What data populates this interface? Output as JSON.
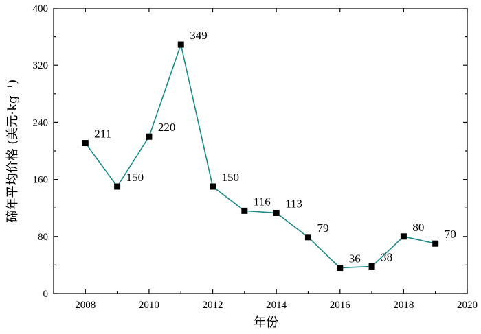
{
  "chart_data": {
    "type": "line",
    "title": "",
    "xlabel": "年份",
    "ylabel": "碲年平均价格 (美元·kg⁻¹)",
    "xlim": [
      2007,
      2020
    ],
    "ylim": [
      0,
      400
    ],
    "xticks": [
      2008,
      2010,
      2012,
      2014,
      2016,
      2018,
      2020
    ],
    "yticks": [
      0,
      80,
      160,
      240,
      320,
      400
    ],
    "grid": false,
    "legend": "none",
    "line_color": "#1a8a8a",
    "marker_color": "#000000",
    "series": [
      {
        "x": [
          2008,
          2009,
          2010,
          2011,
          2012,
          2013,
          2014,
          2015,
          2016,
          2017,
          2018,
          2019
        ],
        "values": [
          211,
          150,
          220,
          349,
          150,
          116,
          113,
          79,
          36,
          38,
          80,
          70
        ],
        "labels": [
          "211",
          "150",
          "220",
          "349",
          "150",
          "116",
          "113",
          "79",
          "36",
          "38",
          "80",
          "70"
        ]
      }
    ]
  }
}
